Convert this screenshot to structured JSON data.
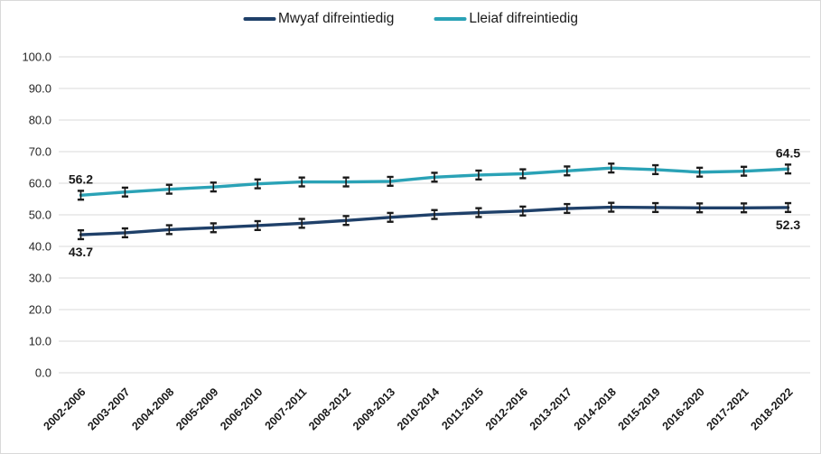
{
  "legend": {
    "items": [
      {
        "label": "Mwyaf difreintiedig",
        "swatch": "navy-line"
      },
      {
        "label": "Lleiaf difreintiedig",
        "swatch": "teal-line"
      }
    ]
  },
  "chart_data": {
    "type": "line",
    "title": "",
    "xlabel": "",
    "ylabel": "",
    "categories": [
      "2002-2006",
      "2003-2007",
      "2004-2008",
      "2005-2009",
      "2006-2010",
      "2007-2011",
      "2008-2012",
      "2009-2013",
      "2010-2014",
      "2011-2015",
      "2012-2016",
      "2013-2017",
      "2014-2018",
      "2015-2019",
      "2016-2020",
      "2017-2021",
      "2018-2022"
    ],
    "series": [
      {
        "name": "Mwyaf difreintiedig",
        "color": "#1F4069",
        "values": [
          43.7,
          44.3,
          45.3,
          45.9,
          46.6,
          47.3,
          48.2,
          49.2,
          50.1,
          50.7,
          51.2,
          52.0,
          52.4,
          52.3,
          52.2,
          52.2,
          52.3
        ],
        "error_bar": 1.4,
        "point_labels": {
          "first": "43.7",
          "last": "52.3",
          "position": "below"
        }
      },
      {
        "name": "Lleiaf difreintiedig",
        "color": "#2AA2B6",
        "values": [
          56.2,
          57.2,
          58.1,
          58.8,
          59.8,
          60.4,
          60.4,
          60.6,
          61.9,
          62.6,
          63.0,
          63.9,
          64.8,
          64.3,
          63.5,
          63.8,
          64.5
        ],
        "error_bar": 1.4,
        "point_labels": {
          "first": "56.2",
          "last": "64.5",
          "position": "above"
        }
      }
    ],
    "ylim": [
      0,
      100
    ],
    "ytick_labels": [
      "0.0",
      "10.0",
      "20.0",
      "30.0",
      "40.0",
      "50.0",
      "60.0",
      "70.0",
      "80.0",
      "90.0",
      "100.0"
    ],
    "grid": "horizontal",
    "gridline_color": "#D9D9D9",
    "error_bars": true,
    "error_bar_color": "#1A1A1A",
    "tick_label_color": "#262626",
    "x_tick_label_color": "#1A1A1A",
    "data_label_color": "#1A1A1A",
    "legend_position": "top-center"
  }
}
